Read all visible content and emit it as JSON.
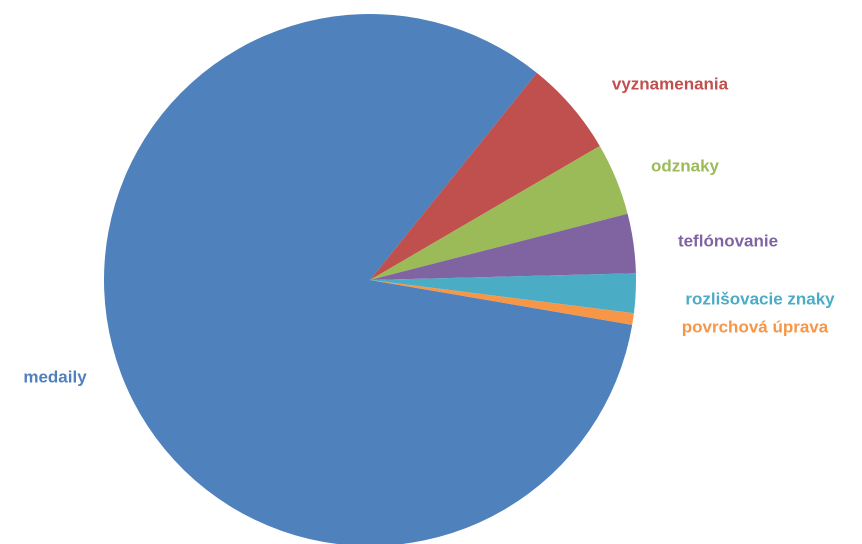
{
  "chart_data": {
    "type": "pie",
    "categories": [
      "medaily",
      "vyznamenania",
      "odznaky",
      "teflónovanie",
      "rozlišovacie znaky",
      "povrchová úprava"
    ],
    "values": [
      83.1,
      5.8,
      4.4,
      3.6,
      2.4,
      0.7
    ],
    "colors": [
      "#4f81bd",
      "#c0504d",
      "#9bbb59",
      "#8064a2",
      "#4bacc6",
      "#f79646"
    ]
  }
}
